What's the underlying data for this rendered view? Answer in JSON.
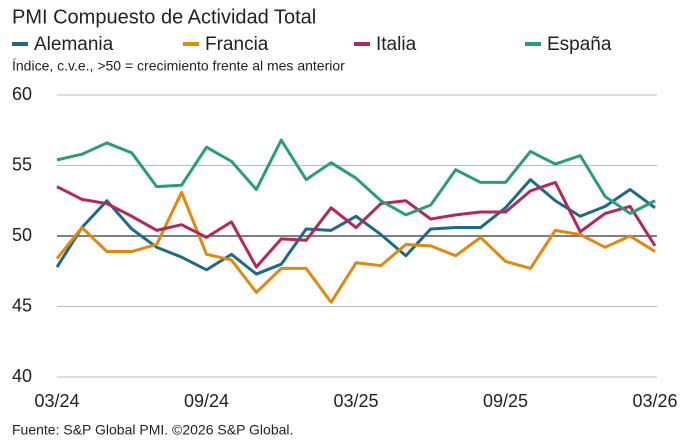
{
  "chart_data": {
    "type": "line",
    "title": "PMI Compuesto de Actividad Total",
    "subtitle": "Índice, c.v.e., >50 = crecimiento frente al mes anterior",
    "source": "Fuente: S&P Global PMI. ©2026 S&P Global.",
    "categories": [
      "03/24",
      null,
      null,
      null,
      null,
      null,
      "09/24",
      null,
      null,
      null,
      null,
      null,
      "03/25",
      null,
      null,
      null,
      null,
      null,
      "09/25",
      null,
      null,
      null,
      null,
      null,
      "03/26"
    ],
    "series": [
      {
        "name": "Alemania",
        "color": "#1b6a8a",
        "values": [
          47.8,
          50.6,
          52.5,
          50.5,
          49.2,
          48.5,
          47.6,
          48.7,
          47.3,
          48.0,
          50.5,
          50.4,
          51.4,
          50.1,
          48.6,
          50.5,
          50.6,
          50.6,
          52.0,
          54.0,
          52.5,
          51.4,
          52.1,
          53.3,
          52.0
        ]
      },
      {
        "name": "Francia",
        "color": "#e0890c",
        "values": [
          48.4,
          50.6,
          48.9,
          48.9,
          49.4,
          53.1,
          48.7,
          48.3,
          46.0,
          47.7,
          47.7,
          45.3,
          48.1,
          47.9,
          49.4,
          49.3,
          48.6,
          49.9,
          48.2,
          47.7,
          50.4,
          50.1,
          49.2,
          50.0,
          48.9
        ]
      },
      {
        "name": "Italia",
        "color": "#b5265e",
        "values": [
          53.5,
          52.6,
          52.3,
          51.4,
          50.4,
          50.8,
          49.9,
          51.0,
          47.8,
          49.8,
          49.7,
          52.0,
          50.6,
          52.3,
          52.5,
          51.2,
          51.5,
          51.7,
          51.7,
          53.2,
          53.8,
          50.3,
          51.6,
          52.1,
          49.3
        ]
      },
      {
        "name": "España",
        "color": "#2a9d78",
        "values": [
          55.4,
          55.8,
          56.6,
          55.9,
          53.5,
          53.6,
          56.3,
          55.3,
          53.3,
          56.8,
          54.0,
          55.2,
          54.1,
          52.5,
          51.5,
          52.2,
          54.7,
          53.8,
          53.8,
          56.0,
          55.1,
          55.7,
          52.8,
          51.6,
          52.5
        ]
      }
    ],
    "ylim": [
      40,
      60
    ],
    "yticks": [
      40,
      45,
      50,
      55,
      60
    ],
    "grid": true,
    "reference_line": 50
  }
}
